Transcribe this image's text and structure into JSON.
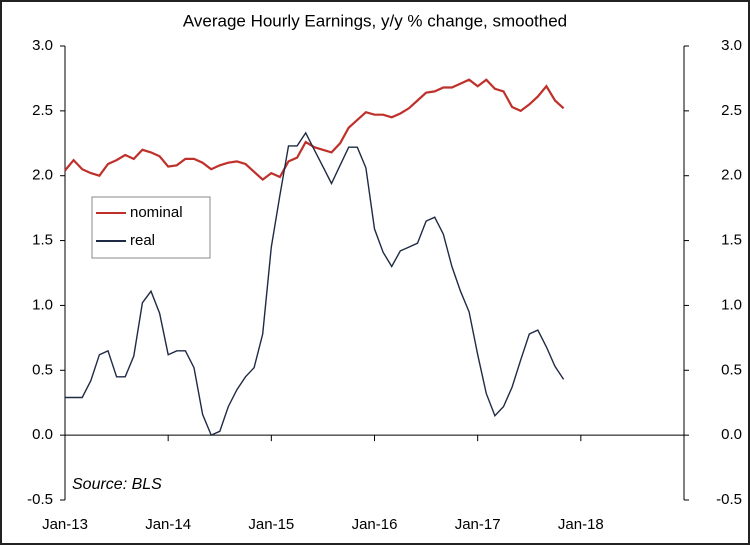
{
  "chart_data": {
    "type": "line",
    "title": "Average Hourly Earnings, y/y % change, smoothed",
    "annotation": "Source: BLS",
    "x": [
      "2013-01",
      "2013-02",
      "2013-03",
      "2013-04",
      "2013-05",
      "2013-06",
      "2013-07",
      "2013-08",
      "2013-09",
      "2013-10",
      "2013-11",
      "2013-12",
      "2014-01",
      "2014-02",
      "2014-03",
      "2014-04",
      "2014-05",
      "2014-06",
      "2014-07",
      "2014-08",
      "2014-09",
      "2014-10",
      "2014-11",
      "2014-12",
      "2015-01",
      "2015-02",
      "2015-03",
      "2015-04",
      "2015-05",
      "2015-06",
      "2015-07",
      "2015-08",
      "2015-09",
      "2015-10",
      "2015-11",
      "2015-12",
      "2016-01",
      "2016-02",
      "2016-03",
      "2016-04",
      "2016-05",
      "2016-06",
      "2016-07",
      "2016-08",
      "2016-09",
      "2016-10",
      "2016-11",
      "2016-12",
      "2017-01",
      "2017-02",
      "2017-03",
      "2017-04",
      "2017-05",
      "2017-06",
      "2017-07",
      "2017-08",
      "2017-09",
      "2017-10",
      "2017-11"
    ],
    "series": [
      {
        "name": "nominal",
        "color": "#c0302b",
        "values": [
          2.04,
          2.12,
          2.05,
          2.02,
          2.0,
          2.09,
          2.12,
          2.16,
          2.13,
          2.2,
          2.18,
          2.15,
          2.07,
          2.08,
          2.13,
          2.13,
          2.1,
          2.05,
          2.08,
          2.1,
          2.11,
          2.09,
          2.03,
          1.97,
          2.02,
          1.99,
          2.11,
          2.14,
          2.26,
          2.22,
          2.2,
          2.18,
          2.25,
          2.37,
          2.43,
          2.49,
          2.47,
          2.47,
          2.45,
          2.48,
          2.52,
          2.58,
          2.64,
          2.65,
          2.68,
          2.68,
          2.71,
          2.74,
          2.69,
          2.74,
          2.67,
          2.65,
          2.53,
          2.5,
          2.55,
          2.61,
          2.69,
          2.58,
          2.52
        ]
      },
      {
        "name": "real",
        "color": "#1f2a44",
        "values": [
          0.29,
          0.29,
          0.29,
          0.42,
          0.62,
          0.65,
          0.45,
          0.45,
          0.61,
          1.02,
          1.11,
          0.94,
          0.62,
          0.65,
          0.65,
          0.52,
          0.16,
          0.0,
          0.03,
          0.22,
          0.35,
          0.45,
          0.52,
          0.78,
          1.45,
          1.85,
          2.23,
          2.23,
          2.33,
          2.2,
          2.07,
          1.94,
          2.08,
          2.22,
          2.22,
          2.06,
          1.59,
          1.41,
          1.3,
          1.42,
          1.45,
          1.48,
          1.65,
          1.68,
          1.55,
          1.3,
          1.11,
          0.95,
          0.62,
          0.32,
          0.15,
          0.22,
          0.37,
          0.58,
          0.78,
          0.81,
          0.68,
          0.53,
          0.43
        ]
      }
    ],
    "xlim": [
      "2013-01",
      "2019-01"
    ],
    "xticks": [
      {
        "value": "2013-01",
        "label": "Jan-13"
      },
      {
        "value": "2014-01",
        "label": "Jan-14"
      },
      {
        "value": "2015-01",
        "label": "Jan-15"
      },
      {
        "value": "2016-01",
        "label": "Jan-16"
      },
      {
        "value": "2017-01",
        "label": "Jan-17"
      },
      {
        "value": "2018-01",
        "label": "Jan-18"
      }
    ],
    "ylim": [
      -0.5,
      3.0
    ],
    "yticks": [
      {
        "value": -0.5,
        "label": "-0.5"
      },
      {
        "value": 0,
        "label": "0.0"
      },
      {
        "value": 0.5,
        "label": "0.5"
      },
      {
        "value": 1,
        "label": "1.0"
      },
      {
        "value": 1.5,
        "label": "1.5"
      },
      {
        "value": 2,
        "label": "2.0"
      },
      {
        "value": 2.5,
        "label": "2.5"
      },
      {
        "value": 3,
        "label": "3.0"
      }
    ],
    "y2lim": [
      -0.5,
      3.0
    ],
    "y2ticks": [
      {
        "value": -0.5,
        "label": "-0.5"
      },
      {
        "value": 0,
        "label": "0.0"
      },
      {
        "value": 0.5,
        "label": "0.5"
      },
      {
        "value": 1,
        "label": "1.0"
      },
      {
        "value": 1.5,
        "label": "1.5"
      },
      {
        "value": 2,
        "label": "2.0"
      },
      {
        "value": 2.5,
        "label": "2.5"
      },
      {
        "value": 3,
        "label": "3.0"
      }
    ],
    "legend": "upper left"
  }
}
